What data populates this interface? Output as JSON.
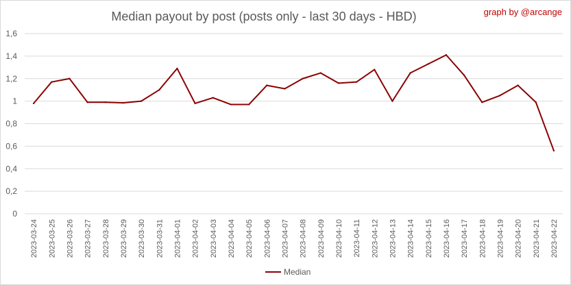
{
  "chart_data": {
    "type": "line",
    "title": "Median payout by post (posts only - last 30 days - HBD)",
    "credit": "graph by @arcange",
    "xlabel": "",
    "ylabel": "",
    "ylim": [
      0,
      1.6
    ],
    "yticks": [
      "0",
      "0,2",
      "0,4",
      "0,6",
      "0,8",
      "1",
      "1,2",
      "1,4",
      "1,6"
    ],
    "ytick_values": [
      0,
      0.2,
      0.4,
      0.6,
      0.8,
      1.0,
      1.2,
      1.4,
      1.6
    ],
    "grid": true,
    "legend_position": "bottom",
    "line_color": "#8b0000",
    "categories": [
      "2023-03-24",
      "2023-03-25",
      "2023-03-26",
      "2023-03-27",
      "2023-03-28",
      "2023-03-29",
      "2023-03-30",
      "2023-03-31",
      "2023-04-01",
      "2023-04-02",
      "2023-04-03",
      "2023-04-04",
      "2023-04-05",
      "2023-04-06",
      "2023-04-07",
      "2023-04-08",
      "2023-04-09",
      "2023-04-10",
      "2023-04-11",
      "2023-04-12",
      "2023-04-13",
      "2023-04-14",
      "2023-04-15",
      "2023-04-16",
      "2023-04-17",
      "2023-04-18",
      "2023-04-19",
      "2023-04-20",
      "2023-04-21",
      "2023-04-22"
    ],
    "series": [
      {
        "name": "Median",
        "values": [
          0.98,
          1.17,
          1.2,
          0.99,
          0.99,
          0.985,
          1.0,
          1.1,
          1.29,
          0.98,
          1.03,
          0.97,
          0.97,
          1.14,
          1.11,
          1.2,
          1.25,
          1.16,
          1.17,
          1.28,
          1.0,
          1.25,
          1.33,
          1.41,
          1.23,
          0.99,
          1.05,
          1.14,
          0.99,
          0.56
        ]
      }
    ]
  }
}
